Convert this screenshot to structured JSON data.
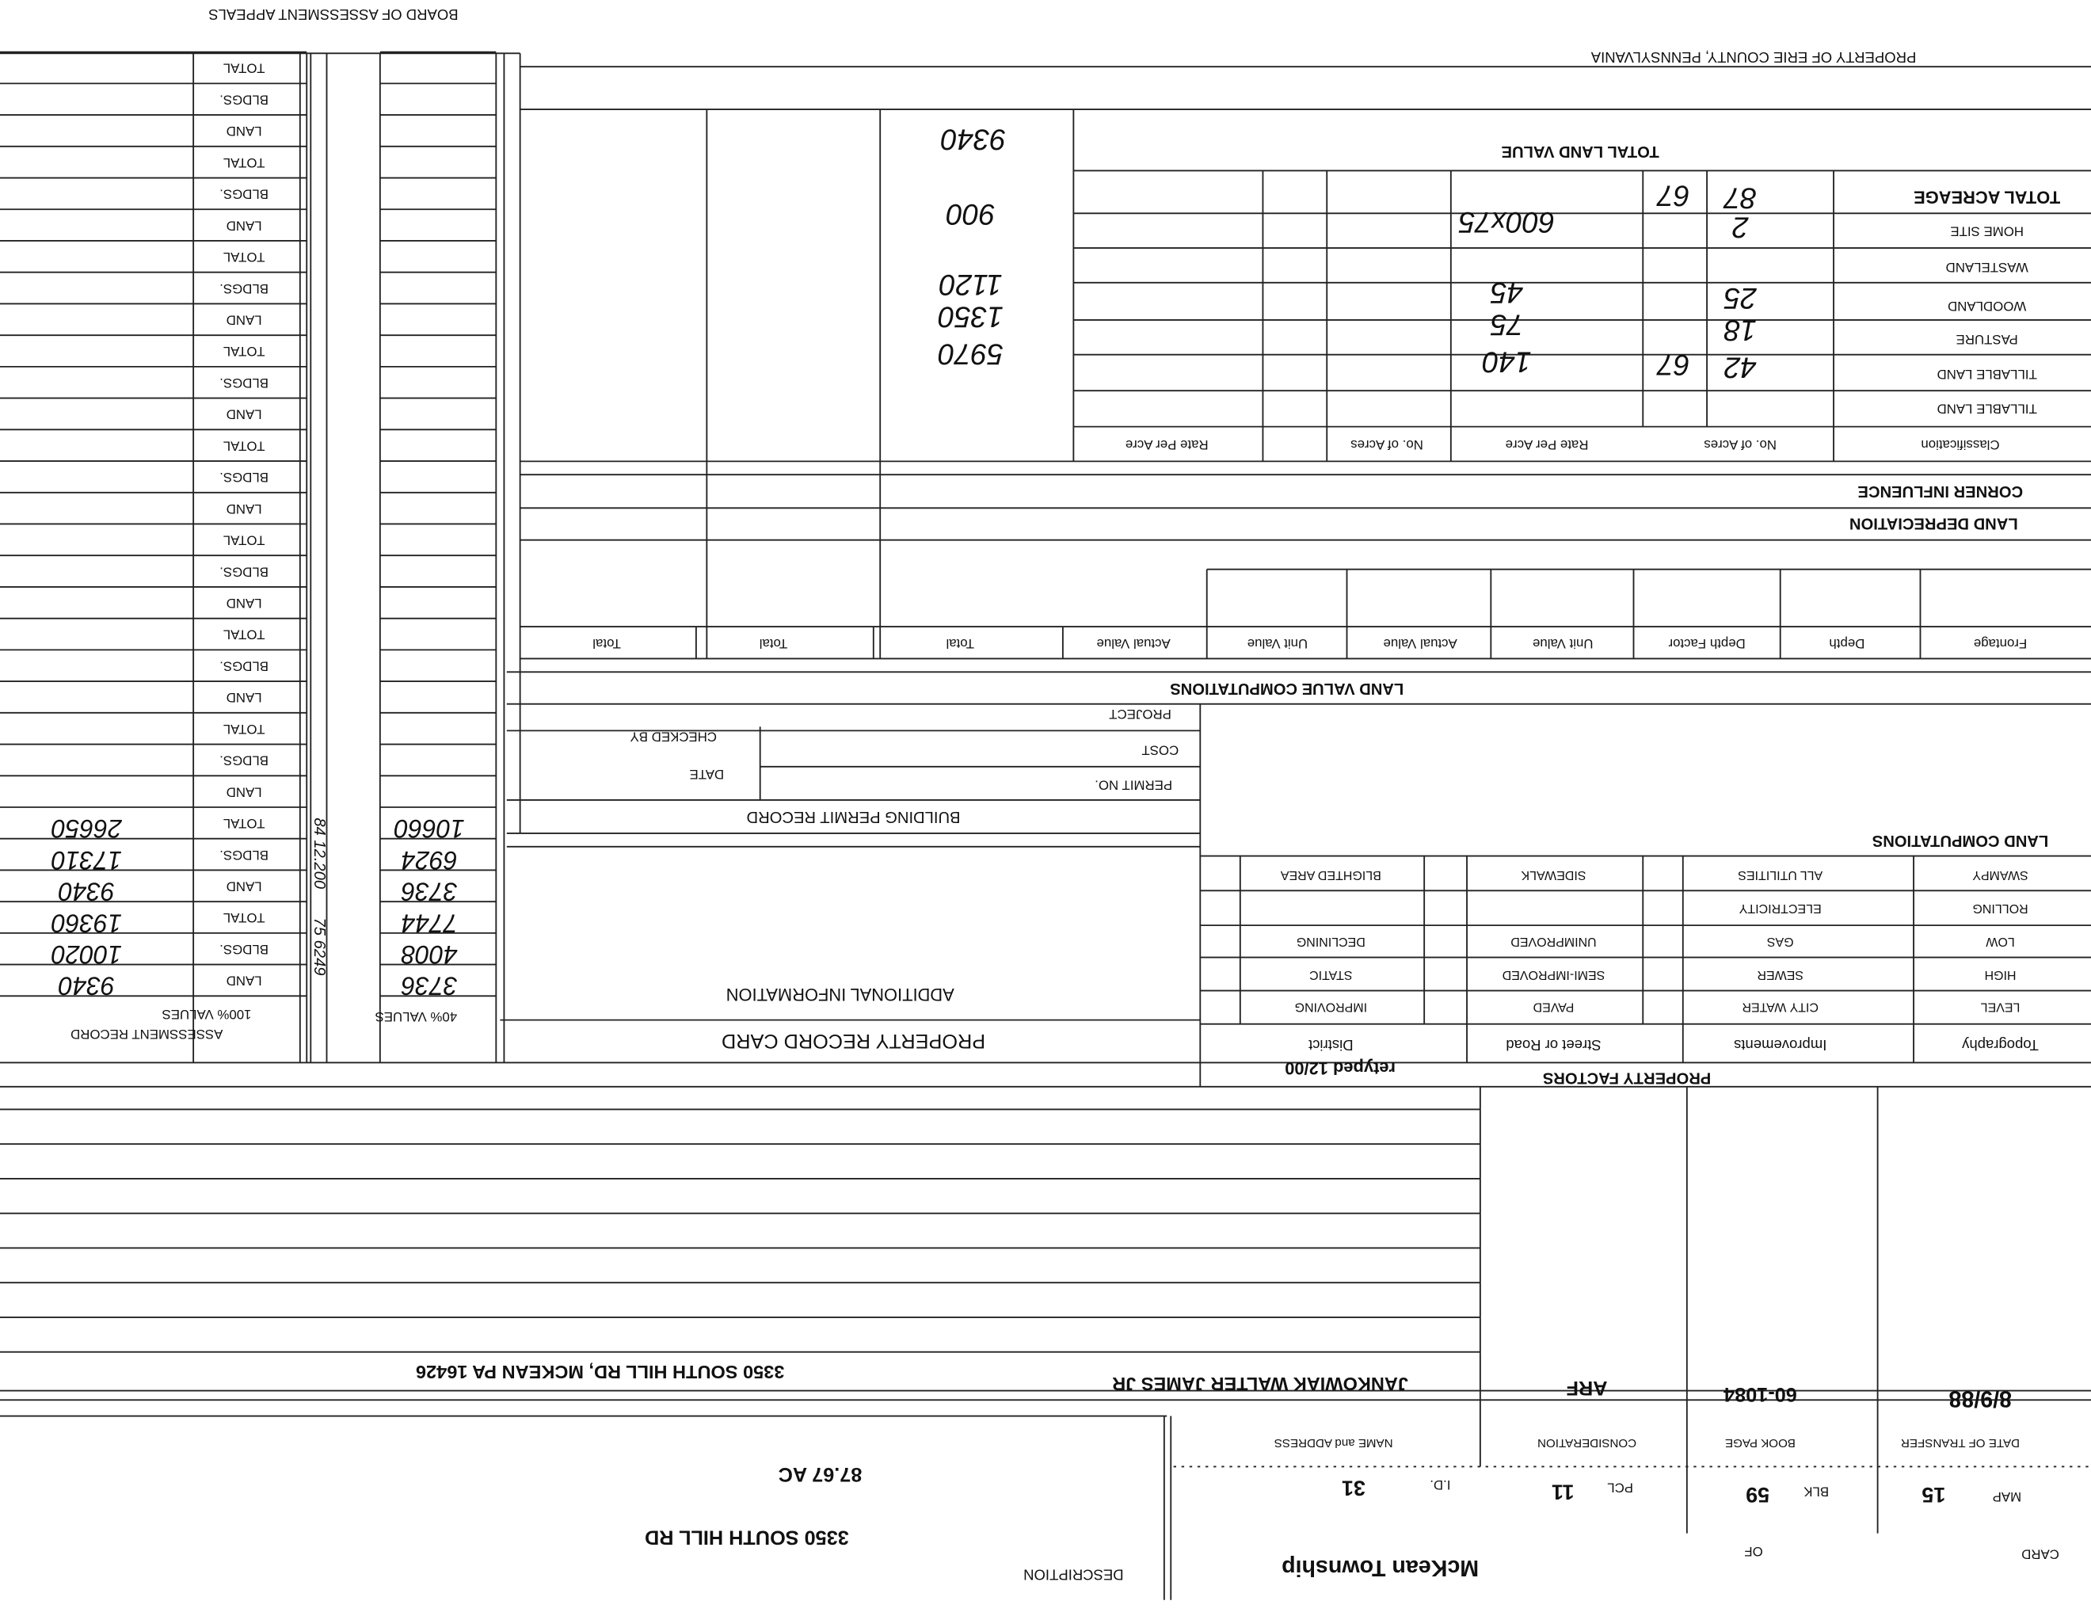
{
  "header": {
    "county": "PROPERTY OF ERIE COUNTY, PENNSYLVANIA",
    "board": "BOARD OF ASSESSMENT APPEALS",
    "card_label": "CARD",
    "of_label": "OF",
    "township": "McKean Township",
    "description_label": "DESCRIPTION",
    "description": "3350 SOUTH HILL RD",
    "map_label": "MAP",
    "map": "15",
    "blk_label": "BLK",
    "blk": "59",
    "pcl_label": "PCL",
    "pcl": "11",
    "id_label": "I.D.",
    "id": "31",
    "acreage": "87.67 AC"
  },
  "transfers": {
    "headers": [
      "DATE OF TRANSFER",
      "BOOK PAGE",
      "CONSIDERATION",
      "NAME and ADDRESS"
    ],
    "rows": [
      {
        "date": "8/9/88",
        "book_page": "60-1084",
        "consideration": "ARF",
        "name": "JANKOWIAK WALTER JAMES JR",
        "address": "3350 SOUTH HILL RD, MCKEAN PA  16426"
      }
    ]
  },
  "property_factors": {
    "title": "PROPERTY FACTORS",
    "retyped": "retyped 12/00",
    "headers": [
      "Topography",
      "Improvements",
      "Street or Road",
      "District"
    ],
    "rows": [
      [
        "LEVEL",
        "CITY WATER",
        "PAVED",
        "IMPROVING"
      ],
      [
        "HIGH",
        "SEWER",
        "SEMI-IMPROVED",
        "STATIC"
      ],
      [
        "LOW",
        "GAS",
        "UNIMPROVED",
        "DECLINING"
      ],
      [
        "ROLLING",
        "ELECTRICITY"
      ],
      [
        "SWAMPY",
        "ALL UTILITIES",
        "SIDEWALK",
        "BLIGHTED AREA"
      ]
    ]
  },
  "land_computations": {
    "title": "LAND COMPUTATIONS"
  },
  "record_card": {
    "title": "PROPERTY RECORD CARD",
    "additional_information": "ADDITIONAL INFORMATION"
  },
  "building_permit": {
    "title": "BUILDING PERMIT RECORD",
    "permit_no": "PERMIT NO.",
    "date": "DATE",
    "cost": "COST",
    "checked_by": "CHECKED BY",
    "project": "PROJECT"
  },
  "land_value_computations": {
    "title": "LAND VALUE COMPUTATIONS",
    "headers": [
      "Frontage",
      "Depth",
      "Depth Factor",
      "Unit Value",
      "Actual Value",
      "Unit Value",
      "Actual Value",
      "Total",
      "Total",
      "Total"
    ]
  },
  "land_depreciation": "LAND DEPRECIATION",
  "corner_influence": "CORNER INFLUENCE",
  "classification": {
    "headers": [
      "Classification",
      "No. of Acres",
      "Rate Per Acre",
      "No. of Acres",
      "Rate Per Acre"
    ],
    "rows": [
      {
        "label": "TILLABLE LAND"
      },
      {
        "label": "TILLABLE LAND",
        "acres": "42",
        "acres_frac": "67",
        "rate": "140",
        "value": "5970"
      },
      {
        "label": "PASTURE",
        "acres": "18",
        "rate": "75",
        "value": "1350"
      },
      {
        "label": "WOODLAND",
        "acres": "25",
        "rate": "45",
        "value": "1120"
      },
      {
        "label": "WASTELAND"
      },
      {
        "label": "HOME SITE",
        "acres": "2",
        "rate": "600x75",
        "value": "900"
      },
      {
        "label": "TOTAL ACREAGE",
        "acres": "87",
        "acres_frac": "67"
      }
    ],
    "total_label": "TOTAL LAND VALUE",
    "total_value": "9340"
  },
  "assessment": {
    "title": "ASSESSMENT RECORD",
    "header_40": "40% VALUES",
    "header_100": "100% VALUES",
    "row_labels": [
      "LAND",
      "BLDGS.",
      "TOTAL",
      "LAND",
      "BLDGS.",
      "TOTAL",
      "LAND",
      "BLDGS.",
      "TOTAL",
      "LAND",
      "BLDGS.",
      "TOTAL",
      "LAND",
      "BLDGS.",
      "TOTAL",
      "LAND",
      "BLDGS.",
      "TOTAL",
      "LAND",
      "BLDGS.",
      "TOTAL",
      "LAND",
      "BLDGS.",
      "TOTAL",
      "LAND",
      "BLDGS.",
      "TOTAL",
      "LAND",
      "BLDGS.",
      "TOTAL"
    ],
    "values_40": [
      "3736",
      "4008",
      "7744",
      "3736",
      "6924",
      "10660"
    ],
    "values_100": [
      "9340",
      "10020",
      "19360",
      "9340",
      "17310",
      "26650"
    ],
    "notes": [
      "75 6249",
      "84 12.200"
    ]
  }
}
